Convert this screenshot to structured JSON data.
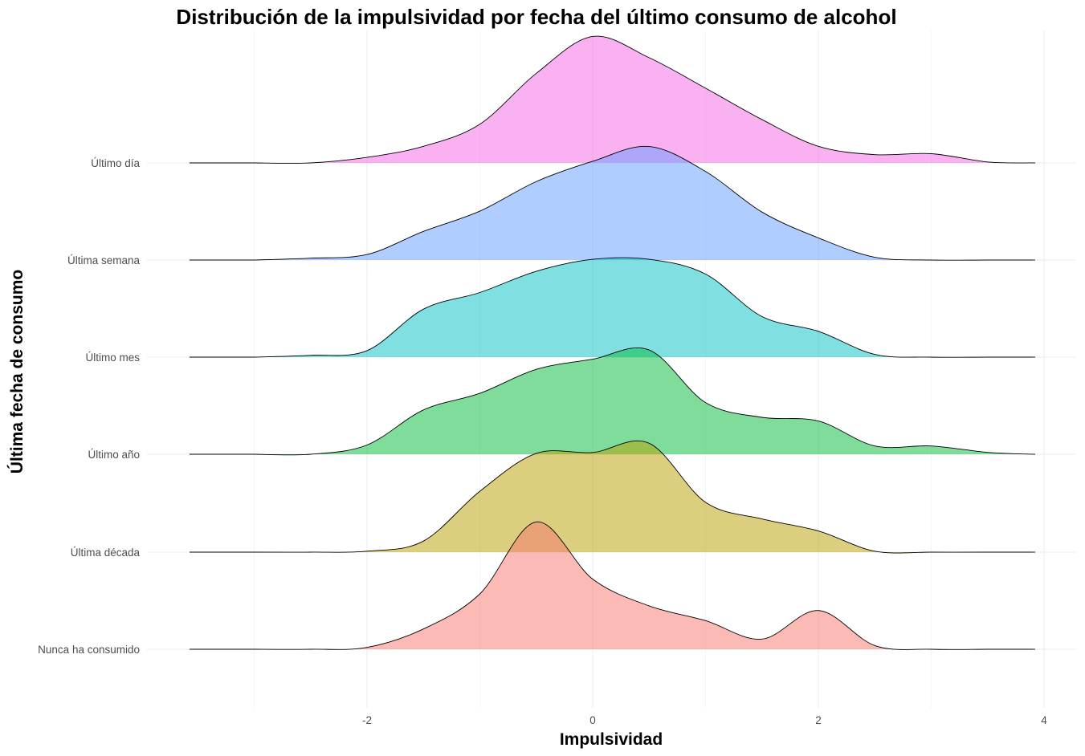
{
  "chart_data": {
    "type": "ridgeline",
    "title": "Distribución de la impulsividad por fecha del último consumo de alcohol",
    "xlabel": "Impulsividad",
    "ylabel": "Última fecha de consumo",
    "xlim": [
      -3.75,
      4.3
    ],
    "x_ticks": [
      -2,
      0,
      2,
      4
    ],
    "x_tick_labels": [
      "-2",
      "0",
      "2",
      "4"
    ],
    "grid": true,
    "fill_opacity": 0.5,
    "x_grid": [
      -3.0,
      -2.5,
      -2.0,
      -1.5,
      -1.0,
      -0.5,
      0.0,
      0.5,
      1.0,
      1.5,
      2.0,
      2.5,
      3.0,
      3.5,
      3.9
    ],
    "series": [
      {
        "name": "Nunca ha consumido",
        "color": "#F8766D",
        "density": [
          0,
          0,
          0.02,
          0.22,
          0.6,
          1.38,
          0.76,
          0.47,
          0.31,
          0.11,
          0.42,
          0.04,
          0,
          0,
          0
        ]
      },
      {
        "name": "Última década",
        "color": "#B79F00",
        "density": [
          0,
          0,
          0.01,
          0.12,
          0.66,
          1.07,
          1.08,
          1.18,
          0.54,
          0.36,
          0.23,
          0.01,
          0,
          0,
          0
        ]
      },
      {
        "name": "Último año",
        "color": "#00BA38",
        "density": [
          0,
          0,
          0.1,
          0.48,
          0.66,
          0.92,
          1.03,
          1.13,
          0.56,
          0.4,
          0.36,
          0.09,
          0.09,
          0.02,
          0
        ]
      },
      {
        "name": "Último mes",
        "color": "#00BFC4",
        "density": [
          0,
          0.02,
          0.07,
          0.52,
          0.7,
          0.93,
          1.06,
          1.06,
          0.9,
          0.44,
          0.28,
          0.03,
          0,
          0,
          0
        ]
      },
      {
        "name": "Última semana",
        "color": "#619CFF",
        "density": [
          0,
          0.02,
          0.06,
          0.31,
          0.53,
          0.85,
          1.07,
          1.23,
          0.96,
          0.52,
          0.24,
          0.03,
          0,
          0,
          0
        ]
      },
      {
        "name": "Último día",
        "color": "#F564E3",
        "density": [
          0,
          0,
          0.06,
          0.18,
          0.42,
          0.97,
          1.37,
          1.14,
          0.81,
          0.47,
          0.18,
          0.09,
          0.1,
          0.01,
          0
        ]
      }
    ]
  }
}
